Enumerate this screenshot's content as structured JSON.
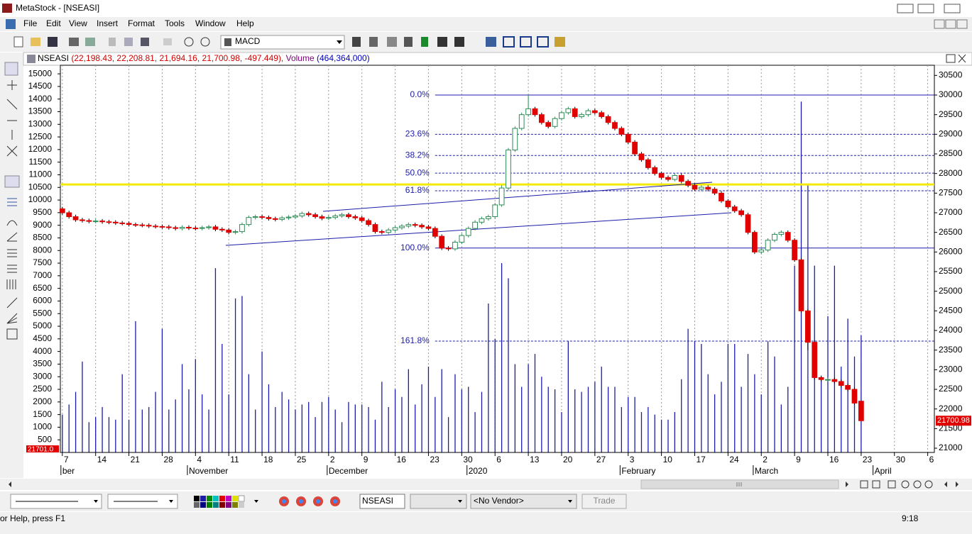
{
  "window": {
    "title": "MetaStock - [NSEASI]"
  },
  "menu": [
    "File",
    "Edit",
    "View",
    "Insert",
    "Format",
    "Tools",
    "Window",
    "Help"
  ],
  "toolbar": {
    "indicator": "MACD"
  },
  "chart_window": {
    "symbol": "NSEASI",
    "prices": "(22,198.43, 22,208.81, 21,694.16, 21,700.98, -497.449),",
    "volume_label": "Volume",
    "volume_value": "(464,364,000)"
  },
  "chart_data": {
    "type": "candlestick",
    "open": [
      27100,
      27000,
      26900,
      26820,
      26800,
      26780,
      26790,
      26770,
      26760,
      26740,
      26730,
      26700,
      26690,
      26680,
      26660,
      26650,
      26640,
      26620,
      26600,
      26630,
      26610,
      26600,
      26620,
      26640,
      26580,
      26560,
      26500,
      26520,
      26700,
      26880,
      26900,
      26880,
      26850,
      26830,
      26870,
      26890,
      26920,
      26980,
      26950,
      26900,
      26860,
      26880,
      26920,
      26950,
      26900,
      26870,
      26800,
      26700,
      26520,
      26500,
      26560,
      26620,
      26660,
      26700,
      26680,
      26640,
      26600,
      26400,
      26100,
      26080,
      26250,
      26420,
      26600,
      26760,
      26850,
      26900,
      27200,
      27630,
      28600,
      29150,
      29500,
      29650,
      29500,
      29300,
      29200,
      29400,
      29550,
      29650,
      29450,
      29500,
      29600,
      29550,
      29450,
      29300,
      29150,
      29000,
      28800,
      28500,
      28350,
      28150,
      28000,
      27900,
      27850,
      27950,
      27800,
      27700,
      27600,
      27650,
      27600,
      27500,
      27300,
      27150,
      27050,
      26950,
      26500,
      26000,
      26050,
      26300,
      26450,
      26500,
      26300,
      25800,
      24500,
      23700,
      22800,
      22750,
      22750,
      22700,
      22600,
      22500,
      22198.43
    ],
    "high": [
      27150,
      27050,
      26950,
      26870,
      26850,
      26840,
      26840,
      26820,
      26810,
      26790,
      26780,
      26750,
      26740,
      26730,
      26710,
      26700,
      26690,
      26670,
      26680,
      26680,
      26660,
      26670,
      26690,
      26690,
      26630,
      26610,
      26570,
      26750,
      26930,
      26950,
      26950,
      26930,
      26900,
      26920,
      26940,
      26970,
      27030,
      27030,
      27000,
      26950,
      26930,
      26970,
      27000,
      27000,
      26950,
      26920,
      26850,
      26750,
      26570,
      26610,
      26670,
      26710,
      26750,
      26750,
      26730,
      26690,
      26650,
      26450,
      26150,
      26300,
      26470,
      26650,
      26810,
      26900,
      26950,
      27250,
      27700,
      28650,
      29200,
      29550,
      30000,
      29700,
      29550,
      29350,
      29450,
      29600,
      29700,
      29700,
      29550,
      29650,
      29650,
      29600,
      29500,
      29350,
      29200,
      29050,
      28850,
      28550,
      28400,
      28200,
      28050,
      27950,
      28000,
      28000,
      27850,
      27750,
      27700,
      27700,
      27650,
      27550,
      27350,
      27200,
      27100,
      27000,
      26550,
      26100,
      26350,
      26500,
      26550,
      26550,
      26350,
      25850,
      24550,
      23750,
      22850,
      22800,
      22800,
      22750,
      22650,
      22550,
      22208.81
    ],
    "low": [
      26950,
      26850,
      26770,
      26750,
      26730,
      26730,
      26720,
      26710,
      26690,
      26680,
      26650,
      26640,
      26630,
      26610,
      26600,
      26590,
      26570,
      26550,
      26550,
      26560,
      26550,
      26550,
      26570,
      26530,
      26510,
      26450,
      26450,
      26470,
      26650,
      26830,
      26830,
      26800,
      26780,
      26780,
      26820,
      26840,
      26870,
      26900,
      26850,
      26810,
      26810,
      26830,
      26870,
      26850,
      26820,
      26750,
      26650,
      26470,
      26450,
      26450,
      26510,
      26570,
      26610,
      26630,
      26590,
      26550,
      26350,
      26050,
      26030,
      26030,
      26200,
      26370,
      26550,
      26710,
      26800,
      26850,
      27150,
      27580,
      28550,
      29100,
      29450,
      29450,
      29250,
      29150,
      29150,
      29350,
      29500,
      29400,
      29400,
      29450,
      29500,
      29400,
      29250,
      29100,
      28950,
      28750,
      28450,
      28300,
      28100,
      27950,
      27850,
      27800,
      27800,
      27750,
      27650,
      27550,
      27550,
      27550,
      27450,
      27250,
      27100,
      27000,
      26900,
      26450,
      25950,
      25950,
      26000,
      26250,
      26400,
      26250,
      25750,
      24450,
      23500,
      22750,
      22700,
      22700,
      22650,
      22550,
      22450,
      22100,
      21694.16
    ],
    "close": [
      27000,
      26900,
      26820,
      26800,
      26780,
      26790,
      26770,
      26760,
      26740,
      26730,
      26700,
      26690,
      26680,
      26660,
      26650,
      26640,
      26620,
      26600,
      26630,
      26610,
      26600,
      26620,
      26640,
      26580,
      26560,
      26500,
      26520,
      26700,
      26880,
      26900,
      26880,
      26850,
      26830,
      26870,
      26890,
      26920,
      26980,
      26950,
      26900,
      26860,
      26880,
      26920,
      26950,
      26900,
      26870,
      26800,
      26700,
      26520,
      26500,
      26560,
      26620,
      26660,
      26700,
      26680,
      26640,
      26600,
      26400,
      26100,
      26080,
      26250,
      26420,
      26600,
      26760,
      26850,
      26900,
      27200,
      27630,
      28600,
      29150,
      29500,
      29650,
      29500,
      29300,
      29200,
      29400,
      29550,
      29650,
      29450,
      29500,
      29600,
      29550,
      29450,
      29300,
      29150,
      29000,
      28800,
      28500,
      28350,
      28150,
      28000,
      27900,
      27850,
      27950,
      27800,
      27700,
      27600,
      27650,
      27600,
      27500,
      27300,
      27150,
      27050,
      26950,
      26500,
      26000,
      26050,
      26300,
      26450,
      26500,
      26300,
      25800,
      24500,
      23700,
      22800,
      22750,
      22750,
      22700,
      22600,
      22500,
      22150,
      21700.98
    ],
    "volume": [
      1500,
      1900,
      2400,
      3600,
      1200,
      1400,
      1800,
      1400,
      1300,
      3100,
      1300,
      5200,
      1700,
      1800,
      2400,
      4900,
      1700,
      2100,
      3500,
      2500,
      3700,
      2300,
      1700,
      7300,
      4300,
      2300,
      6100,
      6200,
      3100,
      1700,
      4000,
      2700,
      1800,
      2400,
      2100,
      1700,
      1900,
      2000,
      1400,
      2000,
      2200,
      1700,
      1200,
      2000,
      1900,
      1900,
      1800,
      1300,
      2800,
      1800,
      2500,
      2200,
      3300,
      1900,
      2700,
      3400,
      2200,
      3300,
      1400,
      3100,
      2500,
      2600,
      1600,
      2400,
      5900,
      4500,
      7500,
      6900,
      3500,
      2600,
      3500,
      3900,
      3000,
      2600,
      2500,
      1600,
      4400,
      2500,
      2400,
      2600,
      2800,
      3400,
      2600,
      2600,
      1800,
      2200,
      2200,
      1600,
      1800,
      1500,
      1300,
      1300,
      1600,
      2900,
      4900,
      4400,
      4300,
      3100,
      2300,
      2800,
      4300,
      4300,
      2600,
      3900,
      3100,
      2300,
      4400,
      3800,
      1900,
      2600,
      7400,
      13900,
      10600,
      7400,
      3000,
      5400,
      7400,
      3400,
      5300,
      3800,
      4643.64
    ],
    "xlim": [
      -0.3,
      131
    ],
    "ylim": [
      20892,
      30759
    ],
    "yticks": [
      21000,
      21500,
      22000,
      22500,
      23000,
      23500,
      24000,
      24500,
      25000,
      25500,
      26000,
      26500,
      27000,
      27500,
      28000,
      28500,
      29000,
      29500,
      30000,
      30500
    ],
    "y2lim": [
      0,
      15340
    ],
    "y2ticks": [
      500,
      1000,
      1500,
      2000,
      2500,
      3000,
      3500,
      4000,
      4500,
      5000,
      5500,
      6000,
      6500,
      7000,
      7500,
      8000,
      8500,
      9000,
      9500,
      10000,
      10500,
      11000,
      11500,
      12000,
      12500,
      13000,
      13500,
      14000,
      14500,
      15000
    ],
    "xticks": [
      {
        "value": 0,
        "label": "7"
      },
      {
        "value": 5,
        "label": "14"
      },
      {
        "value": 10,
        "label": "21"
      },
      {
        "value": 15,
        "label": "28"
      },
      {
        "value": 20,
        "label": "4"
      },
      {
        "value": 25,
        "label": "11"
      },
      {
        "value": 30,
        "label": "18"
      },
      {
        "value": 35,
        "label": "25"
      },
      {
        "value": 40,
        "label": "2"
      },
      {
        "value": 45,
        "label": "9"
      },
      {
        "value": 50,
        "label": "16"
      },
      {
        "value": 55,
        "label": "23"
      },
      {
        "value": 60,
        "label": "30"
      },
      {
        "value": 65,
        "label": "6"
      },
      {
        "value": 70,
        "label": "13"
      },
      {
        "value": 75,
        "label": "20"
      },
      {
        "value": 80,
        "label": "27"
      },
      {
        "value": 85,
        "label": "3"
      },
      {
        "value": 90,
        "label": "10"
      },
      {
        "value": 95,
        "label": "17"
      },
      {
        "value": 100,
        "label": "24"
      },
      {
        "value": 105,
        "label": "2"
      },
      {
        "value": 110,
        "label": "9"
      },
      {
        "value": 115,
        "label": "16"
      },
      {
        "value": 120,
        "label": "23"
      },
      {
        "value": 125,
        "label": "30"
      },
      {
        "value": 130,
        "label": "6"
      }
    ],
    "month_labels": [
      {
        "value": 0,
        "label": "ber"
      },
      {
        "value": 19,
        "label": "November"
      },
      {
        "value": 40,
        "label": "December"
      },
      {
        "value": 61,
        "label": "2020"
      },
      {
        "value": 84,
        "label": "February"
      },
      {
        "value": 104,
        "label": "March"
      },
      {
        "value": 122,
        "label": "April"
      }
    ],
    "colors": {
      "up": "#2e8b57",
      "down": "#e00000",
      "volume": "#1c1ca8",
      "fibonacci": "#1c1ca8"
    },
    "grid": true,
    "horizontal_line": {
      "value": 27720,
      "color": "#f2ea00"
    },
    "fibonacci_start": 56,
    "fibonacci": [
      {
        "value": 30000,
        "label": "0.0%",
        "dashed": false
      },
      {
        "value": 29000,
        "label": "23.6%",
        "dashed": true
      },
      {
        "value": 28460,
        "label": "38.2%",
        "dashed": true
      },
      {
        "value": 28010,
        "label": "50.0%",
        "dashed": true
      },
      {
        "value": 27560,
        "label": "61.8%",
        "dashed": true
      },
      {
        "value": 26100,
        "label": "100.0%",
        "dashed": false
      },
      {
        "value": 23730,
        "label": "161.8%",
        "dashed": true
      }
    ],
    "last_price_label": "21700.98",
    "left_price_label": "21701.0"
  },
  "bottom_toolbar": {
    "symbol": "NSEASI",
    "vendor": "<No Vendor>",
    "trade": "Trade"
  },
  "status": {
    "help": "or Help, press F1",
    "time": "9:18"
  }
}
